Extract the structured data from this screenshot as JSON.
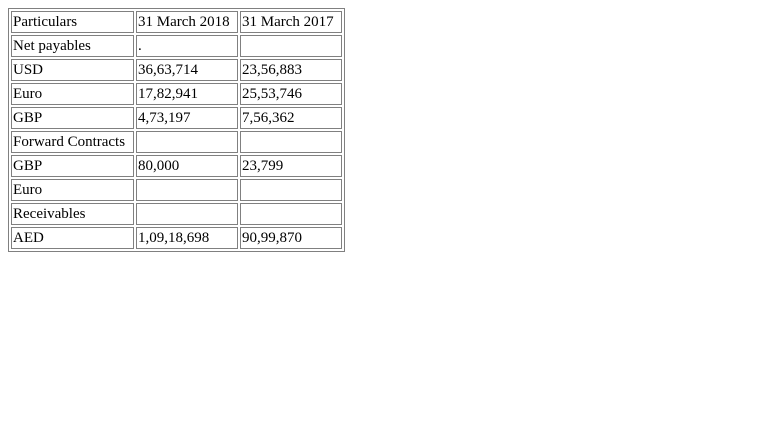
{
  "table": {
    "header": [
      "Particulars",
      "31 March 2018",
      "31 March 2017"
    ],
    "rows": [
      [
        "Net payables",
        ".",
        ""
      ],
      [
        "USD",
        "36,63,714",
        "23,56,883"
      ],
      [
        "Euro",
        "17,82,941",
        "25,53,746"
      ],
      [
        "GBP",
        "4,73,197",
        "7,56,362"
      ],
      [
        "Forward Contracts",
        "",
        ""
      ],
      [
        "GBP",
        "80,000",
        "23,799"
      ],
      [
        "Euro",
        "",
        ""
      ],
      [
        "Receivables",
        "",
        ""
      ],
      [
        "AED",
        "1,09,18,698",
        "90,99,870"
      ]
    ]
  }
}
